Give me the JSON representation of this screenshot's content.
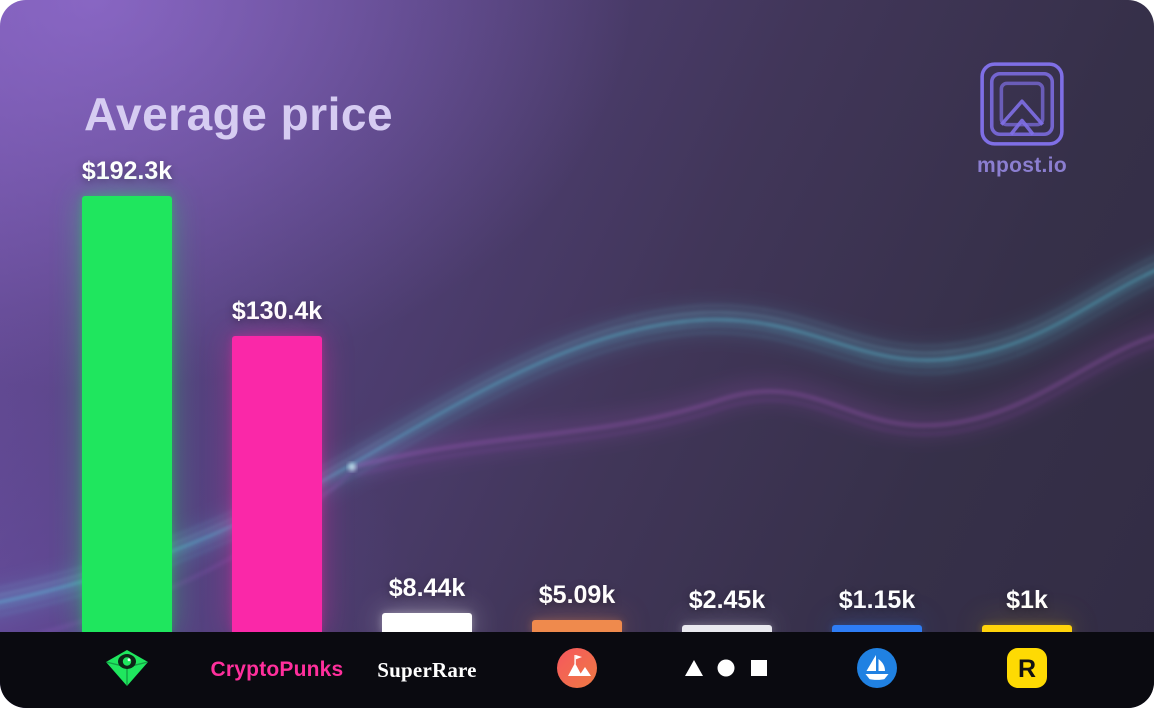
{
  "page": {
    "title": "Average price"
  },
  "brand": {
    "name": "mpost.io"
  },
  "chart_data": {
    "type": "bar",
    "title": "Average price",
    "unit": "USD (thousands)",
    "categories": [
      "green-gem",
      "CryptoPunks",
      "SuperRare",
      "red-mountain-badge",
      "triangle-circle-square",
      "sailboat-badge",
      "R-badge"
    ],
    "values_k": [
      192.3,
      130.4,
      8.44,
      5.09,
      2.45,
      1.15,
      1
    ],
    "value_labels": [
      "$192.3k",
      "$130.4k",
      "$8.44k",
      "$5.09k",
      "$2.45k",
      "$1.15k",
      "$1k"
    ],
    "bar_colors": [
      "#1fe65e",
      "#fa28a8",
      "#ffffff",
      "#ef8a4d",
      "#e9e9ef",
      "#2e7df5",
      "#ffd30a"
    ],
    "ylim": [
      0,
      200
    ],
    "axes": "none",
    "gridlines": false,
    "legend": "none"
  },
  "footer": {
    "platforms": [
      {
        "id": "green-gem",
        "logo": "gem-with-eye-icon",
        "color": "#1fe65e"
      },
      {
        "id": "cryptopunks",
        "wordmark": "CryptoPunks",
        "color": "#ff2f9c"
      },
      {
        "id": "superrare",
        "wordmark": "SuperRare",
        "color": "#ffffff"
      },
      {
        "id": "red-mountain-badge",
        "logo": "mountains-flag-circle-icon",
        "color": "#f3654c"
      },
      {
        "id": "shapes-trio",
        "logo": "triangle-circle-square-icon",
        "color": "#ffffff"
      },
      {
        "id": "sailboat-badge",
        "logo": "sailboat-circle-icon",
        "color": "#2081e2"
      },
      {
        "id": "r-badge",
        "letter": "R",
        "color": "#feda03"
      }
    ]
  }
}
